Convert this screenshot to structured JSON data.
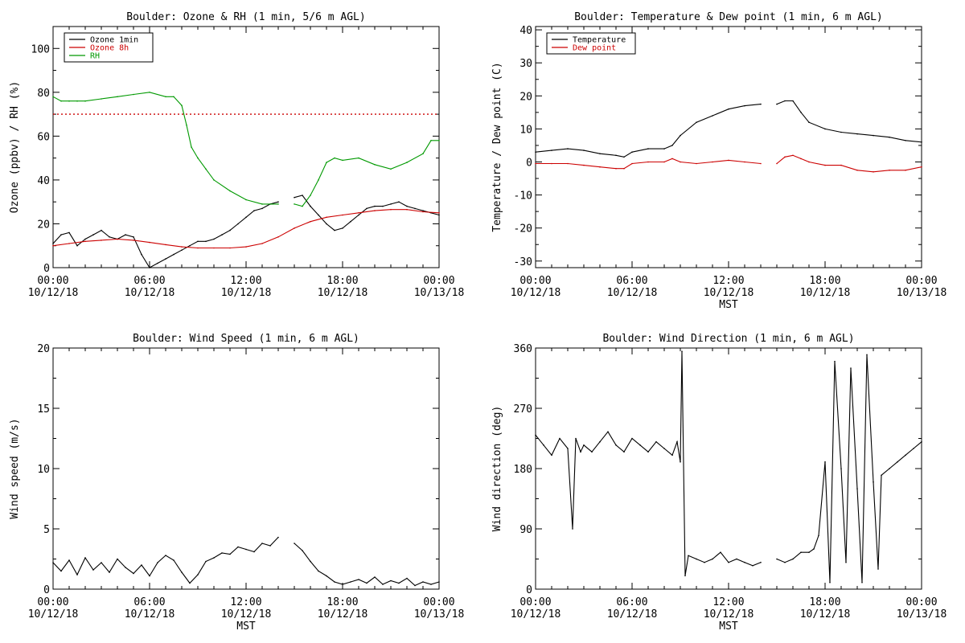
{
  "chart_data": [
    {
      "type": "line",
      "title": "Boulder: Ozone & RH (1 min, 5/6 m AGL)",
      "xlabel": "",
      "ylabel": "Ozone (ppbv) / RH (%)",
      "ylim": [
        0,
        110
      ],
      "xlim": [
        0,
        24
      ],
      "yticks": [
        0,
        20,
        40,
        60,
        80,
        100
      ],
      "xtick_labels": [
        {
          "time": "00:00",
          "date": "10/12/18"
        },
        {
          "time": "06:00",
          "date": "10/12/18"
        },
        {
          "time": "12:00",
          "date": "10/12/18"
        },
        {
          "time": "18:00",
          "date": "10/12/18"
        },
        {
          "time": "00:00",
          "date": "10/13/18"
        }
      ],
      "legend_position": "top-left",
      "reference_line": {
        "y": 70,
        "color": "#cc0000",
        "style": "dotted"
      },
      "series": [
        {
          "name": "Ozone 1min",
          "color": "#000000",
          "x": [
            0,
            0.5,
            1,
            1.5,
            2,
            2.5,
            3,
            3.5,
            4,
            4.5,
            5,
            5.5,
            6,
            6.5,
            7,
            7.5,
            8,
            8.5,
            9,
            9.5,
            10,
            10.5,
            11,
            11.5,
            12,
            12.5,
            13,
            13.5,
            14,
            14.5,
            15,
            15.5,
            16,
            16.5,
            17,
            17.5,
            18,
            18.5,
            19,
            19.5,
            20,
            20.5,
            21,
            21.5,
            22,
            22.5,
            23,
            23.5,
            24
          ],
          "values": [
            11,
            15,
            16,
            10,
            13,
            15,
            17,
            14,
            13,
            15,
            14,
            6,
            0,
            2,
            4,
            6,
            8,
            10,
            12,
            12,
            13,
            15,
            17,
            20,
            23,
            26,
            27,
            29,
            30,
            null,
            32,
            33,
            28,
            24,
            20,
            17,
            18,
            21,
            24,
            27,
            28,
            28,
            29,
            30,
            28,
            27,
            26,
            25,
            24
          ]
        },
        {
          "name": "Ozone 8h",
          "color": "#cc0000",
          "x": [
            0,
            1,
            2,
            3,
            4,
            5,
            6,
            7,
            8,
            9,
            10,
            11,
            12,
            13,
            14,
            15,
            16,
            17,
            18,
            19,
            20,
            21,
            22,
            23,
            24
          ],
          "values": [
            10,
            11,
            12,
            12.5,
            13,
            12.5,
            11.5,
            10.5,
            9.5,
            9,
            9,
            9,
            9.5,
            11,
            14,
            18,
            21,
            23,
            24,
            25,
            26,
            26.5,
            26.5,
            25.5,
            25
          ]
        },
        {
          "name": "RH",
          "color": "#009900",
          "x": [
            0,
            0.5,
            1,
            1.5,
            2,
            3,
            4,
            5,
            6,
            7,
            7.5,
            8,
            8.3,
            8.6,
            9,
            9.5,
            10,
            11,
            12,
            13,
            14,
            14.5,
            15,
            15.5,
            16,
            16.5,
            17,
            17.5,
            18,
            19,
            20,
            21,
            22,
            23,
            23.5,
            24
          ],
          "values": [
            78,
            76,
            76,
            76,
            76,
            77,
            78,
            79,
            80,
            78,
            78,
            74,
            65,
            55,
            50,
            45,
            40,
            35,
            31,
            29,
            29,
            null,
            29,
            28,
            33,
            40,
            48,
            50,
            49,
            50,
            47,
            45,
            48,
            52,
            58,
            58
          ]
        }
      ]
    },
    {
      "type": "line",
      "title": "Boulder: Temperature & Dew point (1 min, 6 m AGL)",
      "xlabel": "MST",
      "ylabel": "Temperature / Dew point (C)",
      "ylim": [
        -32,
        41
      ],
      "xlim": [
        0,
        24
      ],
      "yticks": [
        -30,
        -20,
        -10,
        0,
        10,
        20,
        30,
        40
      ],
      "xtick_labels": [
        {
          "time": "00:00",
          "date": "10/12/18"
        },
        {
          "time": "06:00",
          "date": "10/12/18"
        },
        {
          "time": "12:00",
          "date": "10/12/18"
        },
        {
          "time": "18:00",
          "date": "10/12/18"
        },
        {
          "time": "00:00",
          "date": "10/13/18"
        }
      ],
      "legend_position": "top-left",
      "series": [
        {
          "name": "Temperature",
          "color": "#000000",
          "x": [
            0,
            1,
            2,
            3,
            4,
            5,
            5.5,
            6,
            7,
            8,
            8.5,
            9,
            10,
            11,
            12,
            13,
            14,
            14.5,
            15,
            15.5,
            16,
            16.5,
            17,
            18,
            19,
            20,
            21,
            22,
            23,
            24
          ],
          "values": [
            3,
            3.5,
            4,
            3.5,
            2.5,
            2,
            1.5,
            3,
            4,
            4,
            5,
            8,
            12,
            14,
            16,
            17,
            17.5,
            null,
            17.5,
            18.5,
            18.5,
            15,
            12,
            10,
            9,
            8.5,
            8,
            7.5,
            6.5,
            6
          ]
        },
        {
          "name": "Dew point",
          "color": "#cc0000",
          "x": [
            0,
            1,
            2,
            3,
            4,
            5,
            5.5,
            6,
            7,
            8,
            8.5,
            9,
            10,
            11,
            12,
            13,
            14,
            14.5,
            15,
            15.5,
            16,
            16.5,
            17,
            18,
            19,
            20,
            21,
            22,
            23,
            24
          ],
          "values": [
            -0.5,
            -0.5,
            -0.5,
            -1,
            -1.5,
            -2,
            -2,
            -0.5,
            0,
            0,
            1,
            0,
            -0.5,
            0,
            0.5,
            0,
            -0.5,
            null,
            -0.5,
            1.5,
            2,
            1,
            0,
            -1,
            -1,
            -2.5,
            -3,
            -2.5,
            -2.5,
            -1.5
          ]
        }
      ]
    },
    {
      "type": "line",
      "title": "Boulder: Wind Speed (1 min, 6 m AGL)",
      "xlabel": "MST",
      "ylabel": "Wind speed (m/s)",
      "ylim": [
        0,
        20
      ],
      "xlim": [
        0,
        24
      ],
      "yticks": [
        0,
        5,
        10,
        15,
        20
      ],
      "xtick_labels": [
        {
          "time": "00:00",
          "date": "10/12/18"
        },
        {
          "time": "06:00",
          "date": "10/12/18"
        },
        {
          "time": "12:00",
          "date": "10/12/18"
        },
        {
          "time": "18:00",
          "date": "10/12/18"
        },
        {
          "time": "00:00",
          "date": "10/13/18"
        }
      ],
      "series": [
        {
          "name": "",
          "color": "#000000",
          "x": [
            0,
            0.5,
            1,
            1.5,
            2,
            2.5,
            3,
            3.5,
            4,
            4.5,
            5,
            5.5,
            6,
            6.5,
            7,
            7.5,
            8,
            8.5,
            9,
            9.5,
            10,
            10.5,
            11,
            11.5,
            12,
            12.5,
            13,
            13.5,
            14,
            14.5,
            15,
            15.5,
            16,
            16.5,
            17,
            17.5,
            18,
            18.5,
            19,
            19.5,
            20,
            20.5,
            21,
            21.5,
            22,
            22.5,
            23,
            23.5,
            24
          ],
          "values": [
            2.2,
            1.5,
            2.4,
            1.2,
            2.6,
            1.6,
            2.2,
            1.4,
            2.5,
            1.8,
            1.3,
            2.0,
            1.1,
            2.2,
            2.8,
            2.4,
            1.4,
            0.5,
            1.2,
            2.3,
            2.6,
            3.0,
            2.9,
            3.5,
            3.3,
            3.1,
            3.8,
            3.6,
            4.3,
            null,
            3.8,
            3.2,
            2.3,
            1.5,
            1.1,
            0.6,
            0.4,
            0.6,
            0.8,
            0.5,
            1.0,
            0.4,
            0.7,
            0.5,
            0.9,
            0.3,
            0.6,
            0.4,
            0.6
          ]
        }
      ]
    },
    {
      "type": "line",
      "title": "Boulder: Wind Direction (1 min, 6 m AGL)",
      "xlabel": "MST",
      "ylabel": "Wind direction (deg)",
      "ylim": [
        0,
        360
      ],
      "xlim": [
        0,
        24
      ],
      "yticks": [
        0,
        90,
        180,
        270,
        360
      ],
      "xtick_labels": [
        {
          "time": "00:00",
          "date": "10/12/18"
        },
        {
          "time": "06:00",
          "date": "10/12/18"
        },
        {
          "time": "12:00",
          "date": "10/12/18"
        },
        {
          "time": "18:00",
          "date": "10/12/18"
        },
        {
          "time": "00:00",
          "date": "10/13/18"
        }
      ],
      "series": [
        {
          "name": "",
          "color": "#000000",
          "x": [
            0,
            0.5,
            1,
            1.5,
            2,
            2.3,
            2.5,
            2.8,
            3,
            3.5,
            4,
            4.5,
            5,
            5.5,
            6,
            6.5,
            7,
            7.5,
            8,
            8.5,
            8.8,
            9,
            9.1,
            9.3,
            9.5,
            10,
            10.5,
            11,
            11.5,
            12,
            12.5,
            13,
            13.5,
            14,
            14.5,
            15,
            15.5,
            16,
            16.5,
            17,
            17.3,
            17.6,
            18,
            18.3,
            18.6,
            19,
            19.3,
            19.6,
            20,
            20.3,
            20.6,
            21,
            21.3,
            21.5,
            22,
            22.5,
            23,
            23.5,
            24
          ],
          "values": [
            230,
            215,
            200,
            225,
            210,
            90,
            225,
            205,
            215,
            205,
            220,
            235,
            215,
            205,
            225,
            215,
            205,
            220,
            210,
            200,
            220,
            190,
            355,
            20,
            50,
            45,
            40,
            45,
            55,
            40,
            45,
            40,
            35,
            40,
            null,
            45,
            40,
            45,
            55,
            55,
            60,
            80,
            190,
            10,
            340,
            180,
            40,
            330,
            150,
            10,
            350,
            160,
            30,
            170,
            180,
            190,
            200,
            210,
            220
          ]
        }
      ]
    }
  ]
}
